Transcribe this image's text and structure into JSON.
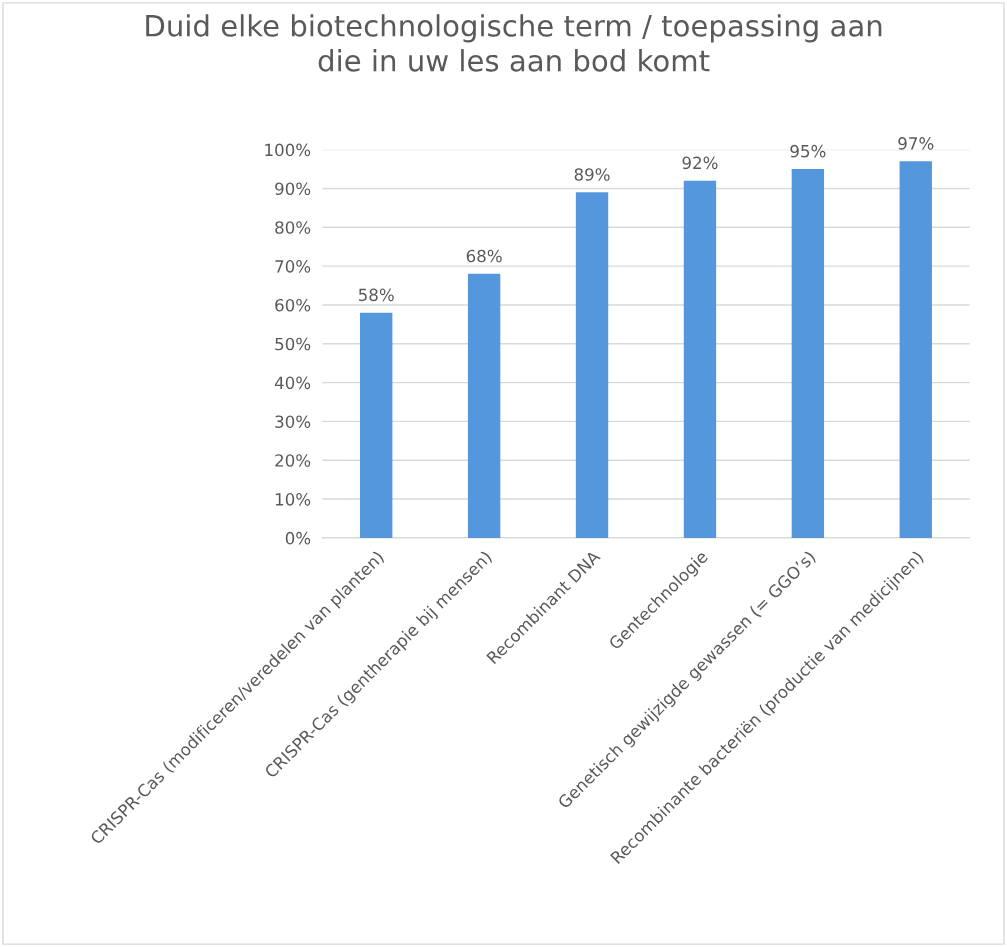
{
  "chart_data": {
    "type": "bar",
    "title": "Duid elke biotechnologische term / toepassing aan\ndie in uw les aan bod komt",
    "categories": [
      "CRISPR-Cas (modificeren/veredelen van planten)",
      "CRISPR-Cas (gentherapie bij mensen)",
      "Recombinant DNA",
      "Gentechnologie",
      "Genetisch gewijzigde gewassen (= GGO’s)",
      "Recombinante bacteriën (productie van medicijnen)"
    ],
    "values": [
      58,
      68,
      89,
      92,
      95,
      97
    ],
    "color": "#5597dd",
    "value_labels": [
      "58%",
      "68%",
      "89%",
      "92%",
      "95%",
      "97%"
    ],
    "ylim": [
      0,
      100
    ],
    "yticks": [
      {
        "value": 0,
        "label": "0%"
      },
      {
        "value": 10,
        "label": "10%"
      },
      {
        "value": 20,
        "label": "20%"
      },
      {
        "value": 30,
        "label": "30%"
      },
      {
        "value": 40,
        "label": "40%"
      },
      {
        "value": 50,
        "label": "50%"
      },
      {
        "value": 60,
        "label": "60%"
      },
      {
        "value": 70,
        "label": "70%"
      },
      {
        "value": 80,
        "label": "80%"
      },
      {
        "value": 90,
        "label": "90%"
      },
      {
        "value": 100,
        "label": "100%"
      }
    ],
    "grid": "y",
    "legend": false
  }
}
